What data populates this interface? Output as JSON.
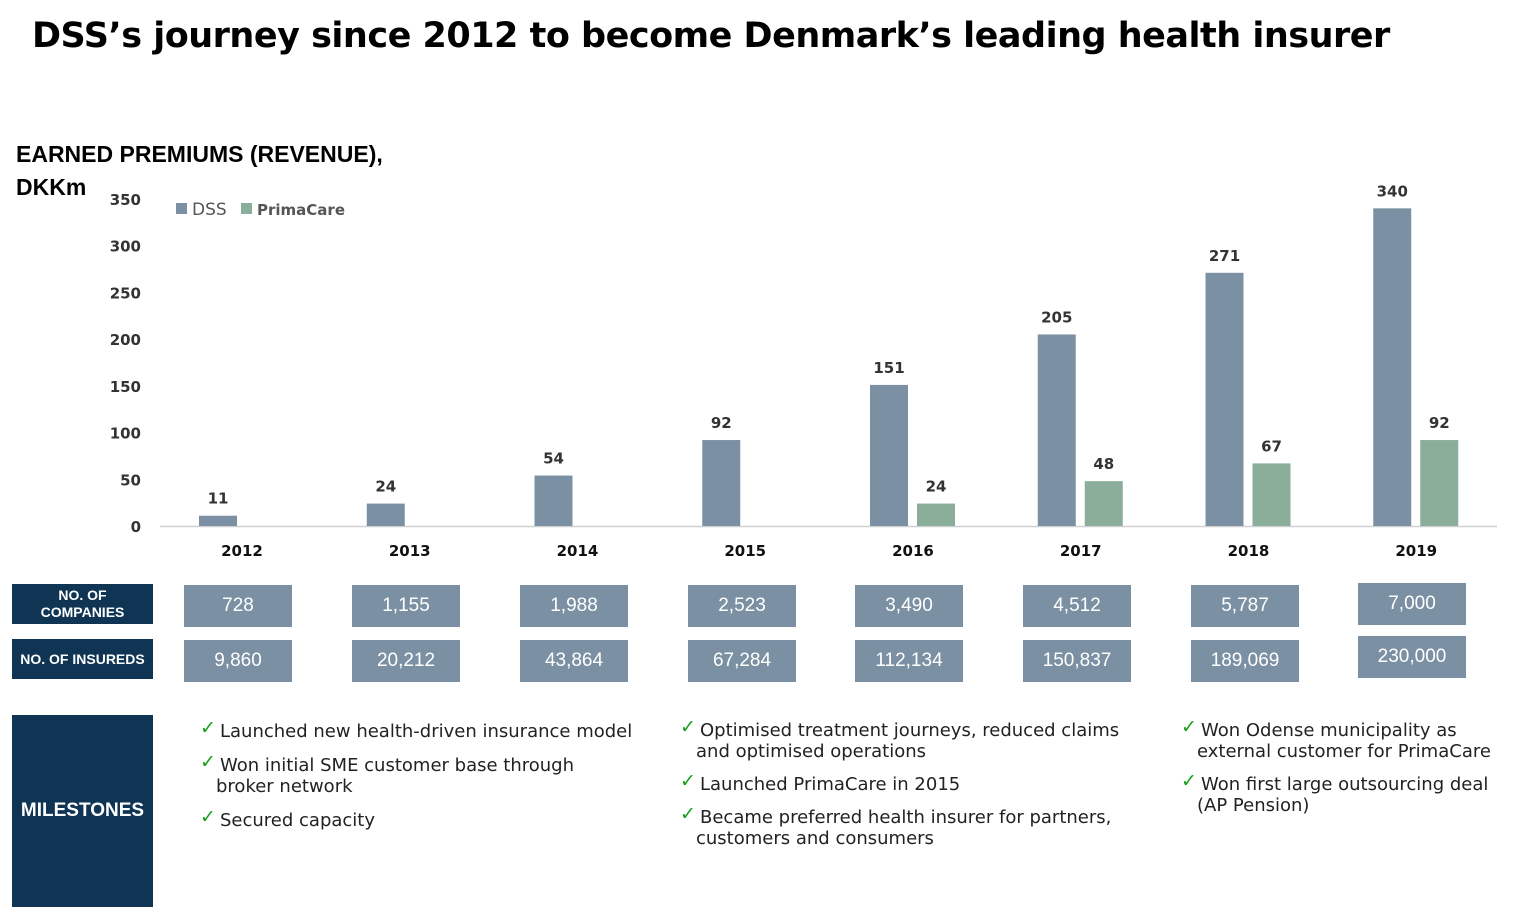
{
  "title": "DSS’s journey since 2012 to become Denmark’s leading health insurer",
  "chart_data": {
    "type": "bar",
    "label_line1": "EARNED PREMIUMS (REVENUE),",
    "label_line2": "DKKm",
    "categories": [
      "2012",
      "2013",
      "2014",
      "2015",
      "2016",
      "2017",
      "2018",
      "2019"
    ],
    "series": [
      {
        "name": "DSS",
        "color": "#7b91a3",
        "values": [
          11,
          24,
          54,
          92,
          151,
          205,
          271,
          340
        ]
      },
      {
        "name": "PrimaCare",
        "color": "#8aae99",
        "values": [
          null,
          null,
          null,
          null,
          24,
          48,
          67,
          92
        ]
      }
    ],
    "ylim": [
      0,
      350
    ],
    "yticks": [
      0,
      50,
      100,
      150,
      200,
      250,
      300,
      350
    ],
    "legend": "top-left",
    "grid": false
  },
  "table": {
    "companies_label_line1": "NO. OF",
    "companies_label_line2": "COMPANIES",
    "insureds_label": "NO. OF INSUREDS",
    "companies": [
      "728",
      "1,155",
      "1,988",
      "2,523",
      "3,490",
      "4,512",
      "5,787",
      "7,000"
    ],
    "insureds": [
      "9,860",
      "20,212",
      "43,864",
      "67,284",
      "112,134",
      "150,837",
      "189,069",
      "230,000"
    ]
  },
  "milestones": {
    "label": "MILESTONES",
    "check_glyph": "✓",
    "columns": [
      [
        [
          "Launched new health-driven insurance model"
        ],
        [
          "Won initial SME customer base through",
          "broker network"
        ],
        [
          "Secured capacity"
        ]
      ],
      [
        [
          "Optimised treatment journeys, reduced claims",
          "and optimised operations"
        ],
        [
          "Launched PrimaCare in 2015"
        ],
        [
          "Became preferred health insurer for partners,",
          "customers and consumers"
        ]
      ],
      [
        [
          "Won Odense municipality as",
          "external customer for PrimaCare"
        ],
        [
          "Won first large outsourcing deal",
          "(AP Pension)"
        ]
      ]
    ]
  }
}
